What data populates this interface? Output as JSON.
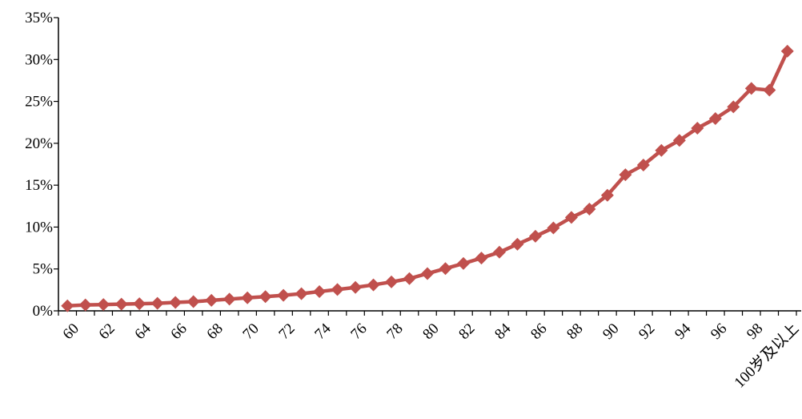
{
  "chart_data": {
    "type": "line",
    "title": "",
    "xlabel": "",
    "ylabel": "",
    "ylim": [
      0,
      35
    ],
    "yticks": [
      "0%",
      "5%",
      "10%",
      "15%",
      "20%",
      "25%",
      "30%",
      "35%"
    ],
    "ytick_values": [
      0,
      5,
      10,
      15,
      20,
      25,
      30,
      35
    ],
    "xtick_labels": [
      "60",
      "62",
      "64",
      "66",
      "68",
      "70",
      "72",
      "74",
      "76",
      "78",
      "80",
      "82",
      "84",
      "86",
      "88",
      "90",
      "92",
      "94",
      "96",
      "98",
      "100岁及以上"
    ],
    "grid": false,
    "legend": "none",
    "color": "#c0504d",
    "categories": [
      "60",
      "61",
      "62",
      "63",
      "64",
      "65",
      "66",
      "67",
      "68",
      "69",
      "70",
      "71",
      "72",
      "73",
      "74",
      "75",
      "76",
      "77",
      "78",
      "79",
      "80",
      "81",
      "82",
      "83",
      "84",
      "85",
      "86",
      "87",
      "88",
      "89",
      "90",
      "91",
      "92",
      "93",
      "94",
      "95",
      "96",
      "97",
      "98",
      "99",
      "100岁及以上"
    ],
    "values": [
      0.6,
      0.7,
      0.75,
      0.8,
      0.85,
      0.9,
      1.0,
      1.1,
      1.25,
      1.4,
      1.55,
      1.7,
      1.85,
      2.05,
      2.3,
      2.55,
      2.8,
      3.1,
      3.45,
      3.85,
      4.45,
      5.05,
      5.65,
      6.3,
      7.0,
      7.95,
      8.9,
      9.9,
      11.15,
      12.15,
      13.8,
      16.25,
      17.4,
      19.15,
      20.35,
      21.8,
      22.95,
      24.35,
      26.55,
      26.35,
      31.0
    ]
  }
}
